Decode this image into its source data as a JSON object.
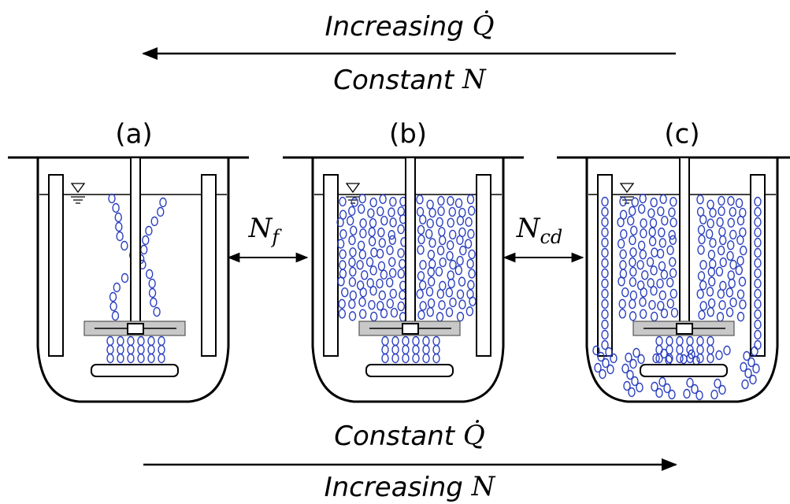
{
  "top": {
    "line1": {
      "word": "Increasing",
      "symbol": "Q̇"
    },
    "line2": {
      "word": "Constant",
      "symbol": "N"
    }
  },
  "bottom": {
    "line1": {
      "word": "Constant",
      "symbol": "Q̇"
    },
    "line2": {
      "word": "Increasing",
      "symbol": "N"
    }
  },
  "panels": [
    "(a)",
    "(b)",
    "(c)"
  ],
  "transitions": [
    {
      "symbol": "N",
      "subscript": "f"
    },
    {
      "symbol": "N",
      "subscript": "cd"
    }
  ]
}
